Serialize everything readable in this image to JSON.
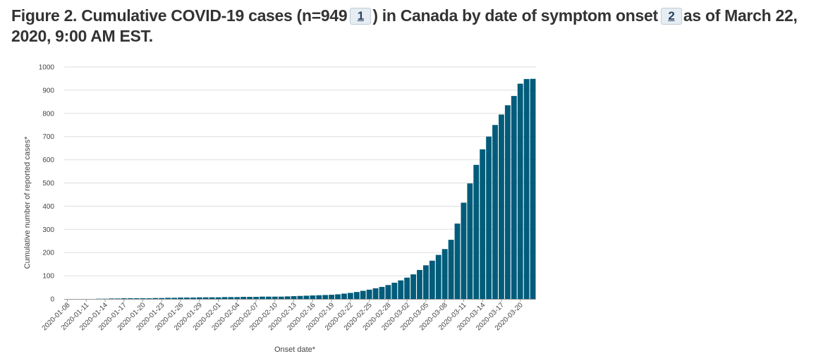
{
  "title": {
    "part1": "Figure 2. Cumulative COVID-19 cases (n=949",
    "footnote1": "1",
    "part2": ") in Canada by date of symptom onset",
    "footnote2": "2",
    "part3": "as of March 22, 2020, 9:00 AM EST."
  },
  "colors": {
    "bar": "#005c7a",
    "grid": "#dddddd",
    "axis": "#999999"
  },
  "chart_data": {
    "type": "bar",
    "xlabel": "Onset date*",
    "ylabel": "Cumulative number of reported cases*",
    "ylim": [
      0,
      1000
    ],
    "yticks": [
      0,
      100,
      200,
      300,
      400,
      500,
      600,
      700,
      800,
      900,
      1000
    ],
    "grid": true,
    "categories": [
      "2020-01-08",
      "2020-01-09",
      "2020-01-10",
      "2020-01-11",
      "2020-01-12",
      "2020-01-13",
      "2020-01-14",
      "2020-01-15",
      "2020-01-16",
      "2020-01-17",
      "2020-01-18",
      "2020-01-19",
      "2020-01-20",
      "2020-01-21",
      "2020-01-22",
      "2020-01-23",
      "2020-01-24",
      "2020-01-25",
      "2020-01-26",
      "2020-01-27",
      "2020-01-28",
      "2020-01-29",
      "2020-01-30",
      "2020-01-31",
      "2020-02-01",
      "2020-02-02",
      "2020-02-03",
      "2020-02-04",
      "2020-02-05",
      "2020-02-06",
      "2020-02-07",
      "2020-02-08",
      "2020-02-09",
      "2020-02-10",
      "2020-02-11",
      "2020-02-12",
      "2020-02-13",
      "2020-02-14",
      "2020-02-15",
      "2020-02-16",
      "2020-02-17",
      "2020-02-18",
      "2020-02-19",
      "2020-02-20",
      "2020-02-21",
      "2020-02-22",
      "2020-02-23",
      "2020-02-24",
      "2020-02-25",
      "2020-02-26",
      "2020-02-27",
      "2020-02-28",
      "2020-02-29",
      "2020-03-01",
      "2020-03-02",
      "2020-03-03",
      "2020-03-04",
      "2020-03-05",
      "2020-03-06",
      "2020-03-07",
      "2020-03-08",
      "2020-03-09",
      "2020-03-10",
      "2020-03-11",
      "2020-03-12",
      "2020-03-13",
      "2020-03-14",
      "2020-03-15",
      "2020-03-16",
      "2020-03-17",
      "2020-03-18",
      "2020-03-19",
      "2020-03-20",
      "2020-03-21",
      "2020-03-22"
    ],
    "tick_labels": [
      "2020-01-08",
      "2020-01-11",
      "2020-01-14",
      "2020-01-17",
      "2020-01-20",
      "2020-01-23",
      "2020-01-26",
      "2020-01-29",
      "2020-02-01",
      "2020-02-04",
      "2020-02-07",
      "2020-02-10",
      "2020-02-13",
      "2020-02-16",
      "2020-02-19",
      "2020-02-22",
      "2020-02-25",
      "2020-02-28",
      "2020-03-02",
      "2020-03-05",
      "2020-03-08",
      "2020-03-11",
      "2020-03-14",
      "2020-03-17",
      "2020-03-20"
    ],
    "values": [
      0,
      0,
      0,
      0,
      0,
      1,
      1,
      2,
      2,
      3,
      3,
      3,
      3,
      3,
      4,
      4,
      5,
      5,
      6,
      6,
      6,
      7,
      7,
      7,
      7,
      8,
      8,
      8,
      9,
      9,
      9,
      10,
      10,
      10,
      10,
      11,
      12,
      13,
      14,
      15,
      16,
      17,
      18,
      20,
      23,
      26,
      30,
      35,
      40,
      46,
      52,
      60,
      70,
      80,
      92,
      106,
      125,
      145,
      165,
      190,
      215,
      255,
      325,
      415,
      498,
      578,
      645,
      700,
      750,
      795,
      835,
      875,
      928,
      948,
      949
    ]
  }
}
